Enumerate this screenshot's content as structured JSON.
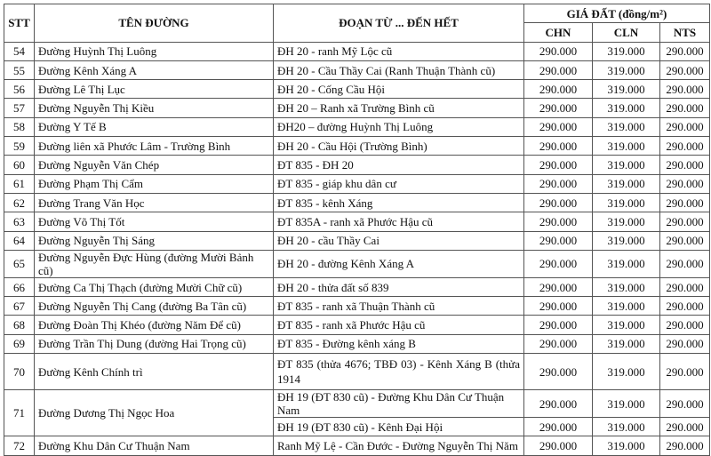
{
  "headers": {
    "stt": "STT",
    "name": "TÊN ĐƯỜNG",
    "segment": "ĐOẠN TỪ ... ĐẾN HẾT",
    "price_group": "GIÁ ĐẤT (đồng/m²)",
    "chn": "CHN",
    "cln": "CLN",
    "nts": "NTS"
  },
  "rows": [
    {
      "stt": "54",
      "name": "Đường Huỳnh Thị Luông",
      "segments": [
        {
          "text": "ĐH 20 - ranh Mỹ Lộc cũ",
          "chn": "290.000",
          "cln": "319.000",
          "nts": "290.000"
        }
      ]
    },
    {
      "stt": "55",
      "name": "Đường Kênh Xáng A",
      "segments": [
        {
          "text": "ĐH 20 - Cầu Thầy Cai (Ranh Thuận Thành cũ)",
          "chn": "290.000",
          "cln": "319.000",
          "nts": "290.000"
        }
      ]
    },
    {
      "stt": "56",
      "name": "Đường Lê Thị Lục",
      "segments": [
        {
          "text": "ĐH 20 - Cống Cầu Hội",
          "chn": "290.000",
          "cln": "319.000",
          "nts": "290.000"
        }
      ]
    },
    {
      "stt": "57",
      "name": "Đường Nguyễn Thị Kiều",
      "segments": [
        {
          "text": "ĐH 20 – Ranh xã Trường Bình cũ",
          "chn": "290.000",
          "cln": "319.000",
          "nts": "290.000"
        }
      ]
    },
    {
      "stt": "58",
      "name": "Đường Y Tế B",
      "segments": [
        {
          "text": "ĐH20 – đường Huỳnh Thị Luông",
          "chn": "290.000",
          "cln": "319.000",
          "nts": "290.000"
        }
      ]
    },
    {
      "stt": "59",
      "name": "Đường liên xã Phước Lâm - Trường Bình",
      "segments": [
        {
          "text": "ĐH 20 - Cầu Hội (Trường Bình)",
          "chn": "290.000",
          "cln": "319.000",
          "nts": "290.000"
        }
      ]
    },
    {
      "stt": "60",
      "name": "Đường Nguyễn Văn Chép",
      "segments": [
        {
          "text": "ĐT 835 - ĐH 20",
          "chn": "290.000",
          "cln": "319.000",
          "nts": "290.000"
        }
      ]
    },
    {
      "stt": "61",
      "name": "Đường Phạm Thị Cẩm",
      "segments": [
        {
          "text": "ĐT 835 - giáp khu dân cư",
          "chn": "290.000",
          "cln": "319.000",
          "nts": "290.000"
        }
      ]
    },
    {
      "stt": "62",
      "name": "Đường Trang Văn Học",
      "segments": [
        {
          "text": "ĐT 835 - kênh Xáng",
          "chn": "290.000",
          "cln": "319.000",
          "nts": "290.000"
        }
      ]
    },
    {
      "stt": "63",
      "name": "Đường Võ Thị Tốt",
      "segments": [
        {
          "text": "ĐT 835A - ranh xã Phước Hậu cũ",
          "chn": "290.000",
          "cln": "319.000",
          "nts": "290.000"
        }
      ]
    },
    {
      "stt": "64",
      "name": "Đường Nguyễn Thị Sáng",
      "segments": [
        {
          "text": "ĐH 20 - cầu Thầy Cai",
          "chn": "290.000",
          "cln": "319.000",
          "nts": "290.000"
        }
      ]
    },
    {
      "stt": "65",
      "name": "Đường Nguyễn Đực Hùng (đường Mười Bảnh cũ)",
      "segments": [
        {
          "text": "ĐH 20 - đường Kênh Xáng A",
          "chn": "290.000",
          "cln": "319.000",
          "nts": "290.000"
        }
      ]
    },
    {
      "stt": "66",
      "name": "Đường Ca Thị Thạch (đường Mười Chữ cũ)",
      "segments": [
        {
          "text": "ĐH 20 - thửa đất số 839",
          "chn": "290.000",
          "cln": "319.000",
          "nts": "290.000"
        }
      ]
    },
    {
      "stt": "67",
      "name": "Đường Nguyễn Thị Cang (đường Ba Tân cũ)",
      "segments": [
        {
          "text": "ĐT 835 - ranh xã Thuận Thành cũ",
          "chn": "290.000",
          "cln": "319.000",
          "nts": "290.000"
        }
      ]
    },
    {
      "stt": "68",
      "name": "Đường Đoàn Thị Khéo (đường Năm Để cũ)",
      "segments": [
        {
          "text": "ĐT 835 -  ranh xã Phước Hậu cũ",
          "chn": "290.000",
          "cln": "319.000",
          "nts": "290.000"
        }
      ]
    },
    {
      "stt": "69",
      "name": "Đường Trần Thị Dung (đường Hai Trọng cũ)",
      "segments": [
        {
          "text": "ĐT 835 - Đường kênh xáng B",
          "chn": "290.000",
          "cln": "319.000",
          "nts": "290.000"
        }
      ]
    },
    {
      "stt": "70",
      "name": "Đường Kênh Chính trì",
      "segments": [
        {
          "text": "ĐT 835 (thửa 4676; TBĐ 03) - Kênh Xáng B (thửa 1914",
          "chn": "290.000",
          "cln": "319.000",
          "nts": "290.000",
          "wrap": true
        }
      ]
    },
    {
      "stt": "71",
      "name": "Đường Dương Thị Ngọc Hoa",
      "segments": [
        {
          "text": "ĐH 19 (ĐT 830 cũ) - Đường Khu Dân Cư Thuận Nam",
          "chn": "290.000",
          "cln": "319.000",
          "nts": "290.000"
        },
        {
          "text": "ĐH 19 (ĐT 830 cũ) - Kênh Đại Hội",
          "chn": "290.000",
          "cln": "319.000",
          "nts": "290.000"
        }
      ]
    },
    {
      "stt": "72",
      "name": "Đường Khu Dân Cư Thuận Nam",
      "segments": [
        {
          "text": "Ranh Mỹ Lệ - Cần Đước - Đường Nguyễn Thị Năm",
          "chn": "290.000",
          "cln": "319.000",
          "nts": "290.000"
        }
      ]
    }
  ]
}
